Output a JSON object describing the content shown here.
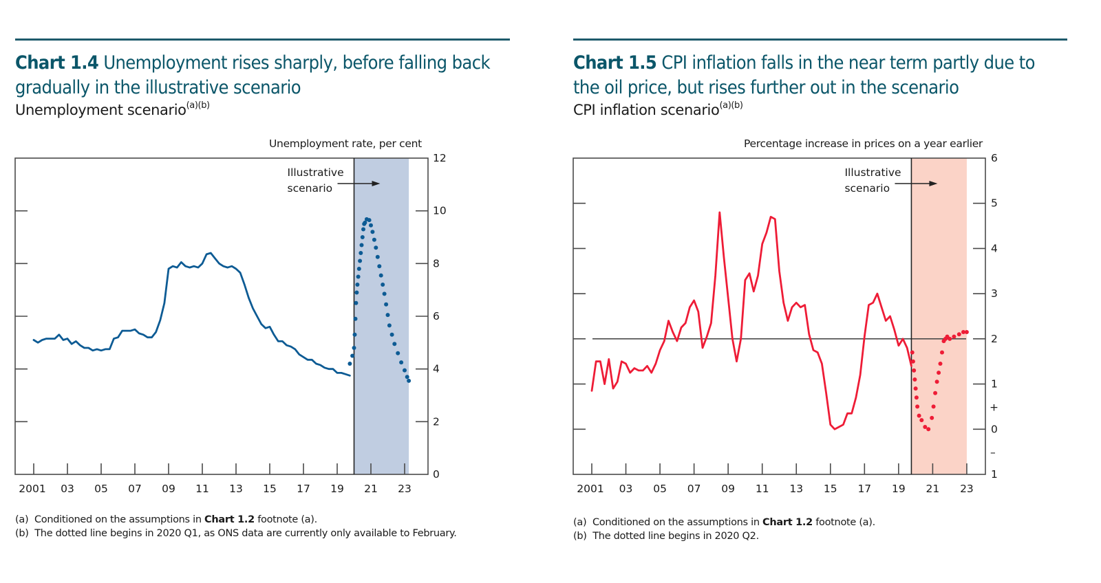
{
  "chart_data": [
    {
      "type": "line",
      "chart_number": "Chart 1.4",
      "title": "Unemployment rises sharply, before falling back gradually in the illustrative scenario",
      "subtitle": "Unemployment scenario",
      "subtitle_notes": "(a)(b)",
      "ylabel": "Unemployment rate, per cent",
      "ylim": [
        0,
        12
      ],
      "y_ticks": [
        0,
        2,
        4,
        6,
        8,
        10,
        12
      ],
      "xlim": [
        2000,
        2024
      ],
      "x_ticks": [
        2001,
        2003,
        2005,
        2007,
        2009,
        2011,
        2013,
        2015,
        2017,
        2019,
        2021,
        2023
      ],
      "x_tick_labels": [
        "2001",
        "03",
        "05",
        "07",
        "09",
        "11",
        "13",
        "15",
        "17",
        "19",
        "21",
        "23"
      ],
      "scenario_band": {
        "start": 2020.0,
        "end": 2023.25,
        "color": "#c0cde1"
      },
      "annotation": {
        "line1": "Illustrative",
        "line2": "scenario"
      },
      "series": [
        {
          "name": "Unemployment rate (outturn)",
          "style": "solid",
          "color": "#0d5b94",
          "x": [
            2001.0,
            2001.25,
            2001.5,
            2001.75,
            2002.0,
            2002.25,
            2002.5,
            2002.75,
            2003.0,
            2003.25,
            2003.5,
            2003.75,
            2004.0,
            2004.25,
            2004.5,
            2004.75,
            2005.0,
            2005.25,
            2005.5,
            2005.75,
            2006.0,
            2006.25,
            2006.5,
            2006.75,
            2007.0,
            2007.25,
            2007.5,
            2007.75,
            2008.0,
            2008.25,
            2008.5,
            2008.75,
            2009.0,
            2009.25,
            2009.5,
            2009.75,
            2010.0,
            2010.25,
            2010.5,
            2010.75,
            2011.0,
            2011.25,
            2011.5,
            2011.75,
            2012.0,
            2012.25,
            2012.5,
            2012.75,
            2013.0,
            2013.25,
            2013.5,
            2013.75,
            2014.0,
            2014.25,
            2014.5,
            2014.75,
            2015.0,
            2015.25,
            2015.5,
            2015.75,
            2016.0,
            2016.25,
            2016.5,
            2016.75,
            2017.0,
            2017.25,
            2017.5,
            2017.75,
            2018.0,
            2018.25,
            2018.5,
            2018.75,
            2019.0,
            2019.25,
            2019.5,
            2019.75
          ],
          "values": [
            5.1,
            5.0,
            5.1,
            5.15,
            5.15,
            5.15,
            5.3,
            5.1,
            5.15,
            4.95,
            5.05,
            4.9,
            4.8,
            4.8,
            4.7,
            4.75,
            4.7,
            4.75,
            4.75,
            5.15,
            5.2,
            5.45,
            5.45,
            5.45,
            5.5,
            5.35,
            5.3,
            5.2,
            5.2,
            5.4,
            5.85,
            6.5,
            7.8,
            7.9,
            7.85,
            8.05,
            7.9,
            7.85,
            7.9,
            7.85,
            8.0,
            8.35,
            8.4,
            8.2,
            8.0,
            7.9,
            7.85,
            7.9,
            7.8,
            7.65,
            7.2,
            6.7,
            6.3,
            6.0,
            5.7,
            5.55,
            5.6,
            5.3,
            5.05,
            5.05,
            4.9,
            4.85,
            4.75,
            4.55,
            4.45,
            4.35,
            4.35,
            4.2,
            4.15,
            4.05,
            4.0,
            4.0,
            3.85,
            3.85,
            3.8,
            3.75
          ]
        },
        {
          "name": "Illustrative scenario",
          "style": "dotted",
          "color": "#0d5b94",
          "x": [
            2019.75,
            2019.9,
            2020.0,
            2020.04,
            2020.08,
            2020.12,
            2020.16,
            2020.2,
            2020.25,
            2020.3,
            2020.35,
            2020.4,
            2020.45,
            2020.5,
            2020.55,
            2020.6,
            2020.65,
            2020.75,
            2020.9,
            2021.0,
            2021.1,
            2021.2,
            2021.3,
            2021.4,
            2021.5,
            2021.6,
            2021.7,
            2021.8,
            2021.9,
            2022.0,
            2022.1,
            2022.25,
            2022.4,
            2022.6,
            2022.8,
            2023.0,
            2023.15,
            2023.25
          ],
          "values": [
            4.2,
            4.5,
            4.8,
            5.3,
            5.9,
            6.5,
            6.9,
            7.2,
            7.5,
            7.8,
            8.1,
            8.4,
            8.7,
            9.0,
            9.3,
            9.5,
            9.55,
            9.68,
            9.65,
            9.45,
            9.2,
            8.9,
            8.6,
            8.25,
            7.9,
            7.55,
            7.2,
            6.85,
            6.45,
            6.05,
            5.65,
            5.3,
            4.95,
            4.6,
            4.25,
            3.95,
            3.7,
            3.55
          ]
        }
      ]
    },
    {
      "type": "line",
      "chart_number": "Chart 1.5",
      "title": "CPI inflation falls in the near term partly due to the oil price, but rises further out in the scenario",
      "subtitle": "CPI inflation scenario",
      "subtitle_notes": "(a)(b)",
      "ylabel": "Percentage increase in prices on a year earlier",
      "ylim": [
        -1,
        6
      ],
      "y_ticks": [
        -1,
        0,
        1,
        2,
        3,
        4,
        5,
        6
      ],
      "y_tick_labels": [
        "1",
        "0",
        "1",
        "2",
        "3",
        "4",
        "5",
        "6"
      ],
      "sign_markers": {
        "plus": "+",
        "minus": "–"
      },
      "reference_line": 2,
      "xlim": [
        2000,
        2024
      ],
      "x_ticks": [
        2001,
        2003,
        2005,
        2007,
        2009,
        2011,
        2013,
        2015,
        2017,
        2019,
        2021,
        2023
      ],
      "x_tick_labels": [
        "2001",
        "03",
        "05",
        "07",
        "09",
        "11",
        "13",
        "15",
        "17",
        "19",
        "21",
        "23"
      ],
      "scenario_band": {
        "start": 2019.75,
        "end": 2023.0,
        "color": "#fbd3c7"
      },
      "annotation": {
        "line1": "Illustrative",
        "line2": "scenario"
      },
      "series": [
        {
          "name": "CPI inflation (outturn)",
          "style": "solid",
          "color": "#ee1c36",
          "x": [
            2001.0,
            2001.25,
            2001.5,
            2001.75,
            2002.0,
            2002.25,
            2002.5,
            2002.75,
            2003.0,
            2003.25,
            2003.5,
            2003.75,
            2004.0,
            2004.25,
            2004.5,
            2004.75,
            2005.0,
            2005.25,
            2005.5,
            2005.75,
            2006.0,
            2006.25,
            2006.5,
            2006.75,
            2007.0,
            2007.25,
            2007.5,
            2007.75,
            2008.0,
            2008.25,
            2008.5,
            2008.75,
            2009.0,
            2009.25,
            2009.5,
            2009.75,
            2010.0,
            2010.25,
            2010.5,
            2010.75,
            2011.0,
            2011.25,
            2011.5,
            2011.75,
            2012.0,
            2012.25,
            2012.5,
            2012.75,
            2013.0,
            2013.25,
            2013.5,
            2013.75,
            2014.0,
            2014.25,
            2014.5,
            2014.75,
            2015.0,
            2015.25,
            2015.5,
            2015.75,
            2016.0,
            2016.25,
            2016.5,
            2016.75,
            2017.0,
            2017.25,
            2017.5,
            2017.75,
            2018.0,
            2018.25,
            2018.5,
            2018.75,
            2019.0,
            2019.25,
            2019.5,
            2019.75
          ],
          "values": [
            0.85,
            1.5,
            1.5,
            1.0,
            1.55,
            0.9,
            1.05,
            1.5,
            1.45,
            1.25,
            1.35,
            1.3,
            1.3,
            1.4,
            1.25,
            1.45,
            1.75,
            1.95,
            2.4,
            2.15,
            1.95,
            2.25,
            2.35,
            2.7,
            2.85,
            2.6,
            1.8,
            2.05,
            2.35,
            3.4,
            4.8,
            3.8,
            2.9,
            2.0,
            1.5,
            2.0,
            3.3,
            3.45,
            3.05,
            3.4,
            4.1,
            4.35,
            4.7,
            4.65,
            3.5,
            2.8,
            2.4,
            2.7,
            2.8,
            2.7,
            2.75,
            2.1,
            1.75,
            1.7,
            1.45,
            0.8,
            0.1,
            0.0,
            0.05,
            0.1,
            0.35,
            0.35,
            0.7,
            1.2,
            2.05,
            2.75,
            2.8,
            3.0,
            2.7,
            2.4,
            2.5,
            2.2,
            1.85,
            2.0,
            1.8,
            1.4
          ]
        },
        {
          "name": "Illustrative scenario",
          "style": "dotted",
          "color": "#ee1c36",
          "x": [
            2019.8,
            2019.85,
            2019.9,
            2019.95,
            2020.0,
            2020.05,
            2020.1,
            2020.2,
            2020.35,
            2020.55,
            2020.75,
            2020.95,
            2021.05,
            2021.15,
            2021.25,
            2021.35,
            2021.45,
            2021.55,
            2021.65,
            2021.75,
            2021.85,
            2022.0,
            2022.25,
            2022.55,
            2022.8,
            2023.0
          ],
          "values": [
            1.7,
            1.5,
            1.3,
            1.1,
            0.9,
            0.7,
            0.5,
            0.3,
            0.2,
            0.05,
            0.0,
            0.25,
            0.5,
            0.8,
            1.05,
            1.25,
            1.45,
            1.7,
            1.95,
            2.0,
            2.05,
            2.0,
            2.05,
            2.1,
            2.15,
            2.15
          ]
        }
      ]
    }
  ],
  "charts": [
    {
      "chart_number": "Chart 1.4",
      "title_rest": "Unemployment rises sharply, before falling back",
      "title_line2": "gradually in the illustrative scenario",
      "subtitle": "Unemployment scenario",
      "subtitle_notes": "(a)(b)",
      "unit_label": "Unemployment rate, per cent",
      "annotation_line1": "Illustrative",
      "annotation_line2": "scenario",
      "footnotes": [
        {
          "marker": "(a)",
          "pre": "Conditioned on the assumptions in ",
          "bold": "Chart 1.2",
          "post": " footnote (a)."
        },
        {
          "marker": "(b)",
          "pre": "The dotted line begins in 2020 Q1, as ONS data are currently only available to February.",
          "bold": "",
          "post": ""
        }
      ]
    },
    {
      "chart_number": "Chart 1.5",
      "title_rest": "CPI inflation falls in the near term partly due to",
      "title_line2": "the oil price, but rises further out in the scenario",
      "subtitle": "CPI inflation scenario",
      "subtitle_notes": "(a)(b)",
      "unit_label": "Percentage increase in prices on a year earlier",
      "annotation_line1": "Illustrative",
      "annotation_line2": "scenario",
      "footnotes": [
        {
          "marker": "(a)",
          "pre": "Conditioned on the assumptions in ",
          "bold": "Chart 1.2",
          "post": " footnote (a)."
        },
        {
          "marker": "(b)",
          "pre": "The dotted line begins in 2020 Q2.",
          "bold": "",
          "post": ""
        }
      ]
    }
  ]
}
